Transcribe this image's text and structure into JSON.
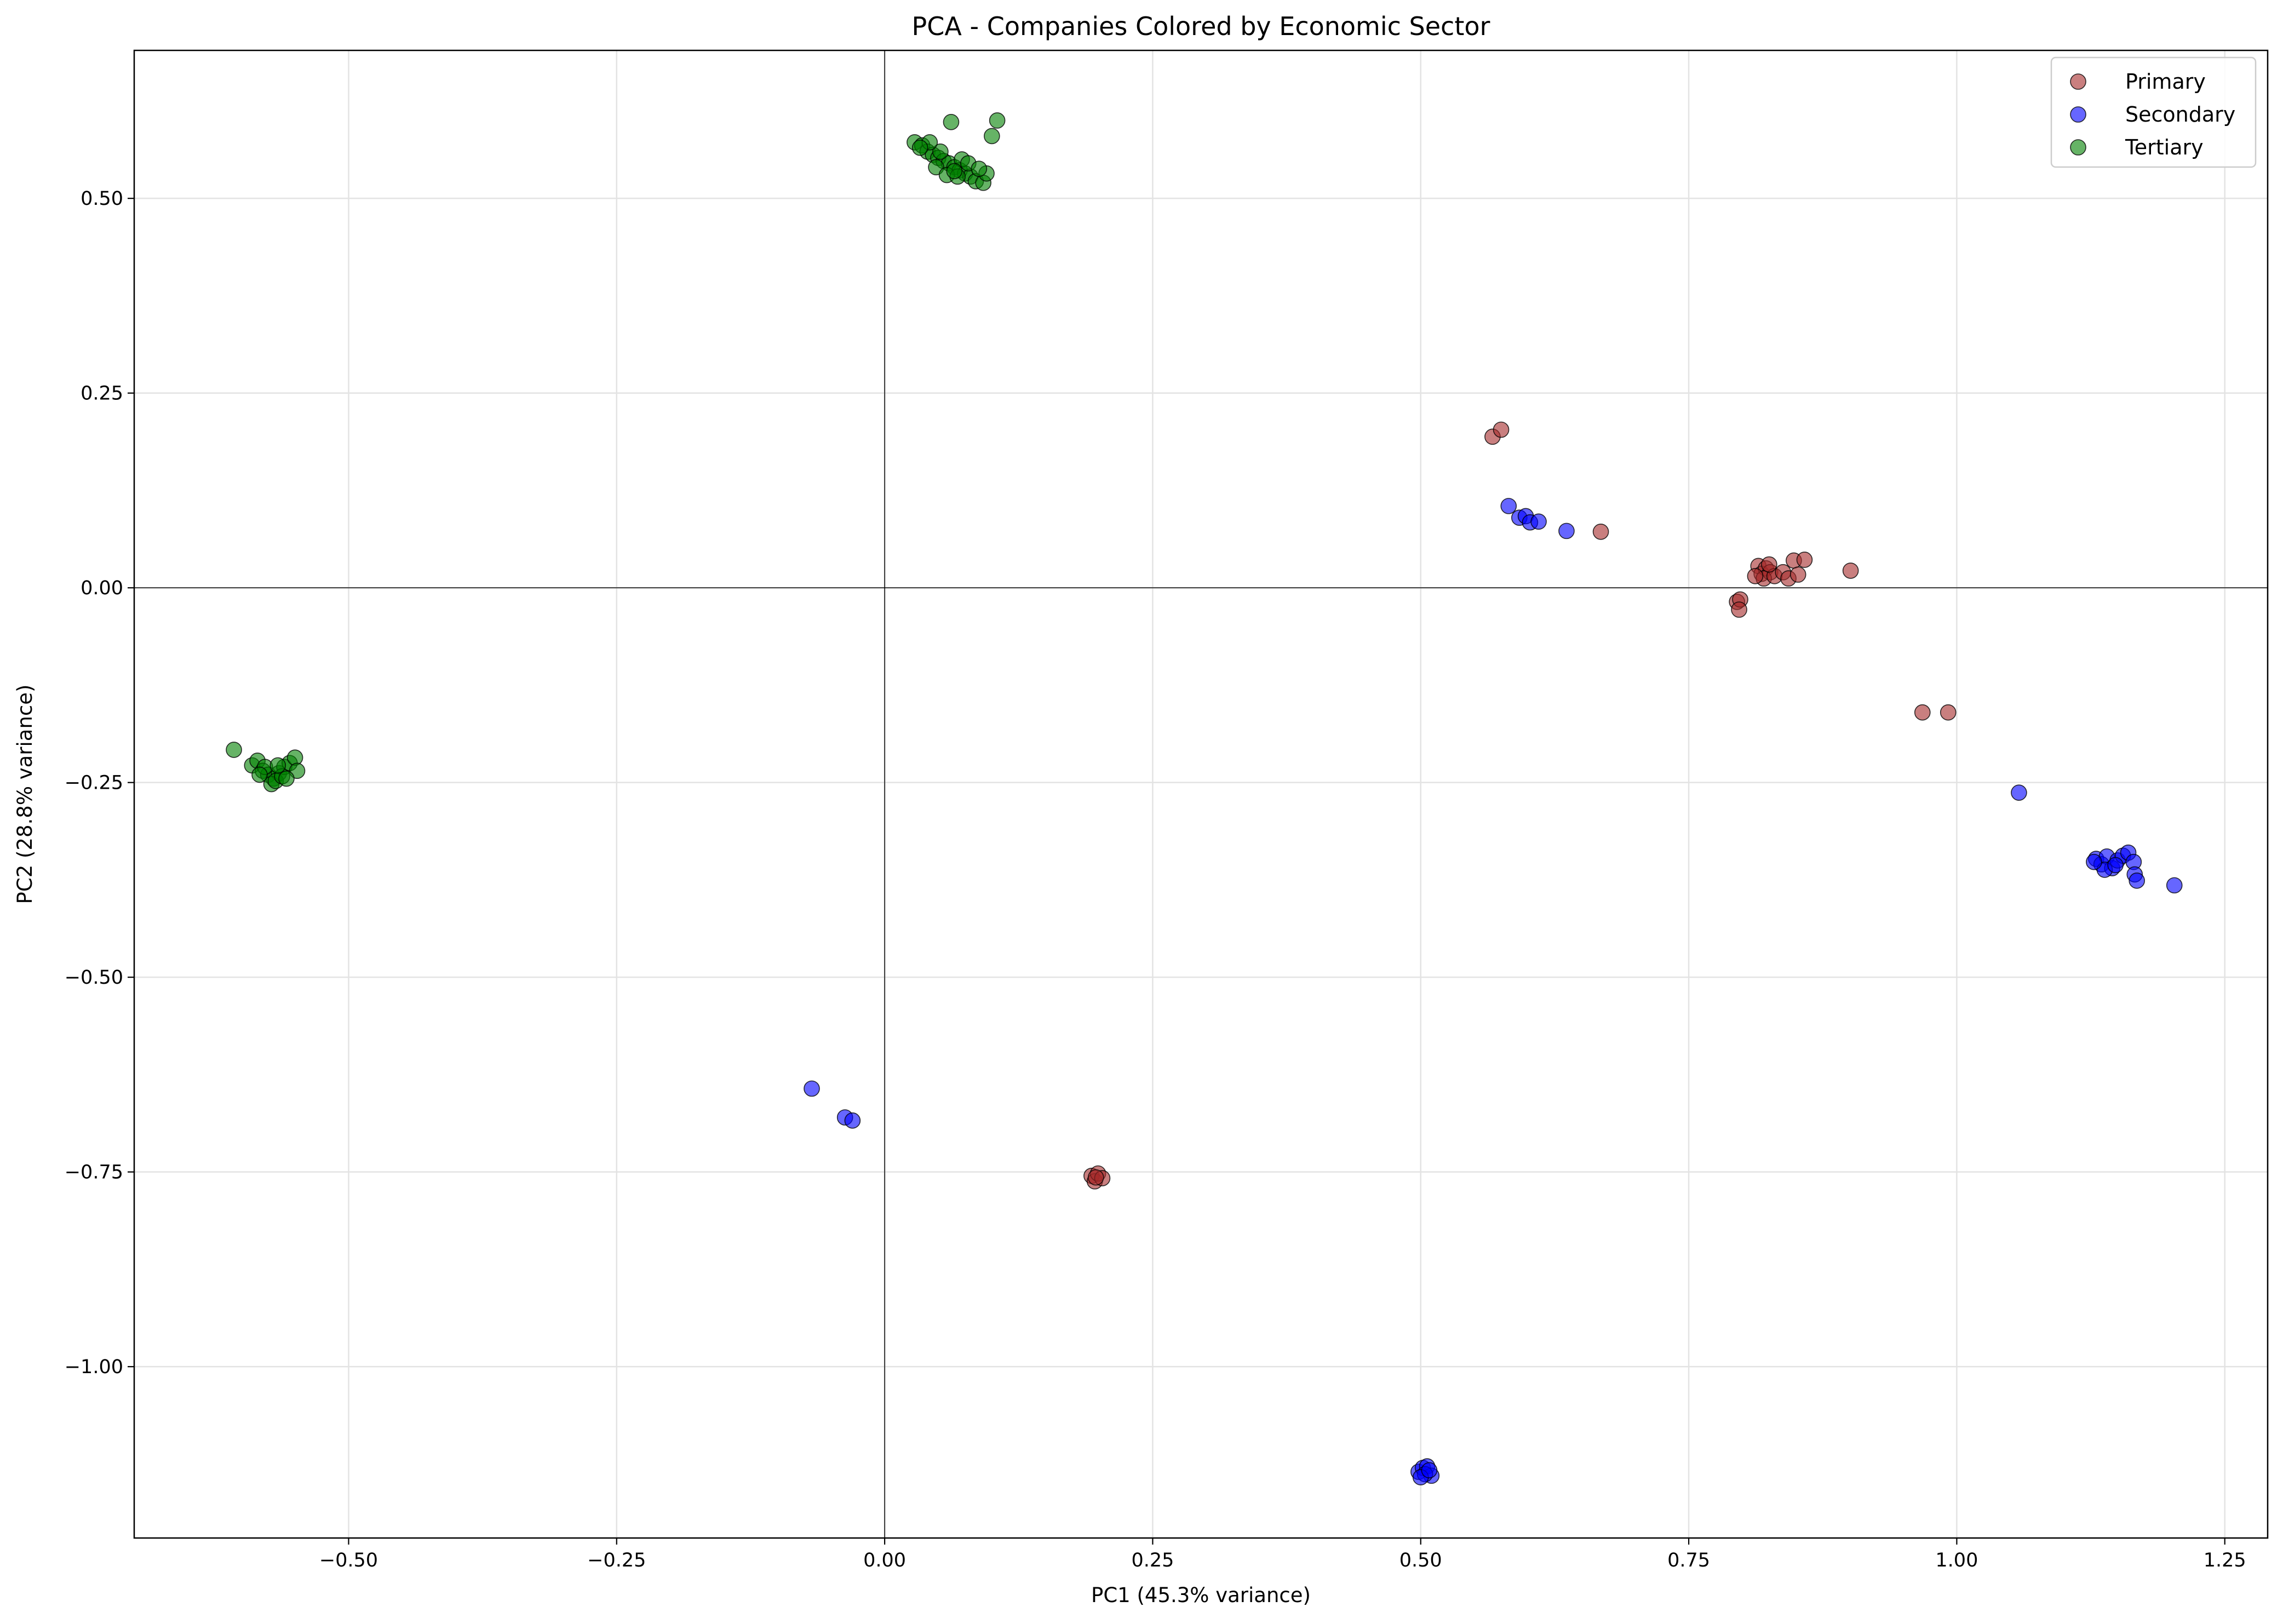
{
  "chart_data": {
    "type": "scatter",
    "title": "PCA - Companies Colored by Economic Sector",
    "xlabel": "PC1 (45.3% variance)",
    "ylabel": "PC2 (28.8% variance)",
    "xlim": [
      -0.7,
      1.29
    ],
    "ylim": [
      -1.22,
      0.69
    ],
    "x_ticks": [
      -0.5,
      -0.25,
      0.0,
      0.25,
      0.5,
      0.75,
      1.0,
      1.25
    ],
    "x_tick_labels": [
      "−0.50",
      "−0.25",
      "0.00",
      "0.25",
      "0.50",
      "0.75",
      "1.00",
      "1.25"
    ],
    "y_ticks": [
      0.5,
      0.25,
      0.0,
      -0.25,
      -0.5,
      -0.75,
      -1.0
    ],
    "y_tick_labels": [
      "0.50",
      "0.25",
      "0.00",
      "−0.25",
      "−0.50",
      "−0.75",
      "−1.00"
    ],
    "grid": true,
    "reference_lines": {
      "x": 0,
      "y": 0
    },
    "legend_position": "top-right",
    "series": [
      {
        "name": "Primary",
        "color": "#a52a2a",
        "points": [
          [
            0.567,
            0.194
          ],
          [
            0.575,
            0.203
          ],
          [
            0.668,
            0.072
          ],
          [
            0.815,
            0.028
          ],
          [
            0.818,
            0.018
          ],
          [
            0.822,
            0.025
          ],
          [
            0.826,
            0.02
          ],
          [
            0.82,
            0.012
          ],
          [
            0.83,
            0.015
          ],
          [
            0.838,
            0.02
          ],
          [
            0.843,
            0.012
          ],
          [
            0.848,
            0.035
          ],
          [
            0.852,
            0.017
          ],
          [
            0.858,
            0.036
          ],
          [
            0.812,
            0.015
          ],
          [
            0.825,
            0.03
          ],
          [
            0.901,
            0.022
          ],
          [
            0.795,
            -0.018
          ],
          [
            0.798,
            -0.015
          ],
          [
            0.797,
            -0.028
          ],
          [
            0.968,
            -0.16
          ],
          [
            0.992,
            -0.16
          ],
          [
            0.193,
            -0.755
          ],
          [
            0.196,
            -0.762
          ],
          [
            0.199,
            -0.752
          ],
          [
            0.203,
            -0.758
          ],
          [
            0.197,
            -0.757
          ]
        ]
      },
      {
        "name": "Secondary",
        "color": "#0000ff",
        "points": [
          [
            0.582,
            0.105
          ],
          [
            0.592,
            0.09
          ],
          [
            0.598,
            0.092
          ],
          [
            0.602,
            0.084
          ],
          [
            0.61,
            0.085
          ],
          [
            0.636,
            0.073
          ],
          [
            1.058,
            -0.263
          ],
          [
            1.13,
            -0.348
          ],
          [
            1.135,
            -0.355
          ],
          [
            1.14,
            -0.345
          ],
          [
            1.145,
            -0.36
          ],
          [
            1.15,
            -0.35
          ],
          [
            1.155,
            -0.344
          ],
          [
            1.16,
            -0.34
          ],
          [
            1.165,
            -0.352
          ],
          [
            1.138,
            -0.362
          ],
          [
            1.128,
            -0.352
          ],
          [
            1.148,
            -0.356
          ],
          [
            1.166,
            -0.368
          ],
          [
            1.168,
            -0.376
          ],
          [
            1.203,
            -0.382
          ],
          [
            -0.068,
            -0.643
          ],
          [
            -0.037,
            -0.68
          ],
          [
            -0.03,
            -0.684
          ],
          [
            0.498,
            -1.135
          ],
          [
            0.502,
            -1.13
          ],
          [
            0.506,
            -1.128
          ],
          [
            0.51,
            -1.14
          ],
          [
            0.504,
            -1.138
          ],
          [
            0.5,
            -1.142
          ],
          [
            0.508,
            -1.133
          ]
        ]
      },
      {
        "name": "Tertiary",
        "color": "#008000",
        "points": [
          [
            0.028,
            0.572
          ],
          [
            0.035,
            0.568
          ],
          [
            0.04,
            0.56
          ],
          [
            0.045,
            0.556
          ],
          [
            0.05,
            0.552
          ],
          [
            0.055,
            0.548
          ],
          [
            0.06,
            0.545
          ],
          [
            0.065,
            0.54
          ],
          [
            0.07,
            0.536
          ],
          [
            0.075,
            0.532
          ],
          [
            0.08,
            0.528
          ],
          [
            0.085,
            0.522
          ],
          [
            0.092,
            0.52
          ],
          [
            0.095,
            0.532
          ],
          [
            0.062,
            0.598
          ],
          [
            0.1,
            0.58
          ],
          [
            0.105,
            0.6
          ],
          [
            0.048,
            0.54
          ],
          [
            0.058,
            0.53
          ],
          [
            0.068,
            0.528
          ],
          [
            0.072,
            0.55
          ],
          [
            0.052,
            0.56
          ],
          [
            0.042,
            0.572
          ],
          [
            0.078,
            0.545
          ],
          [
            0.088,
            0.538
          ],
          [
            0.065,
            0.535
          ],
          [
            0.033,
            0.565
          ],
          [
            -0.607,
            -0.208
          ],
          [
            -0.59,
            -0.228
          ],
          [
            -0.585,
            -0.222
          ],
          [
            -0.58,
            -0.235
          ],
          [
            -0.575,
            -0.24
          ],
          [
            -0.57,
            -0.245
          ],
          [
            -0.565,
            -0.238
          ],
          [
            -0.56,
            -0.23
          ],
          [
            -0.555,
            -0.225
          ],
          [
            -0.55,
            -0.218
          ],
          [
            -0.548,
            -0.235
          ],
          [
            -0.572,
            -0.252
          ],
          [
            -0.568,
            -0.248
          ],
          [
            -0.562,
            -0.242
          ],
          [
            -0.578,
            -0.23
          ],
          [
            -0.583,
            -0.24
          ],
          [
            -0.558,
            -0.245
          ],
          [
            -0.566,
            -0.228
          ]
        ]
      }
    ]
  }
}
